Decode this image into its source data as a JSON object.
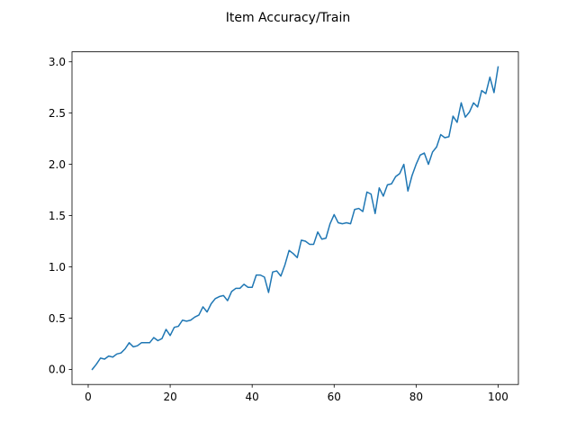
{
  "chart_data": {
    "type": "line",
    "title": "Item Accuracy/Train",
    "xlabel": "",
    "ylabel": "",
    "xlim": [
      -3.95,
      104.95
    ],
    "ylim": [
      -0.1475,
      3.0975
    ],
    "xticks": [
      0,
      20,
      40,
      60,
      80,
      100
    ],
    "xtick_labels": [
      "0",
      "20",
      "40",
      "60",
      "80",
      "100"
    ],
    "yticks": [
      0.0,
      0.5,
      1.0,
      1.5,
      2.0,
      2.5,
      3.0
    ],
    "ytick_labels": [
      "0.0",
      "0.5",
      "1.0",
      "1.5",
      "2.0",
      "2.5",
      "3.0"
    ],
    "grid": false,
    "legend": "none",
    "series": [
      {
        "color": "#1f77b4",
        "x": [
          1,
          2,
          3,
          4,
          5,
          6,
          7,
          8,
          9,
          10,
          11,
          12,
          13,
          14,
          15,
          16,
          17,
          18,
          19,
          20,
          21,
          22,
          23,
          24,
          25,
          26,
          27,
          28,
          29,
          30,
          31,
          32,
          33,
          34,
          35,
          36,
          37,
          38,
          39,
          40,
          41,
          42,
          43,
          44,
          45,
          46,
          47,
          48,
          49,
          50,
          51,
          52,
          53,
          54,
          55,
          56,
          57,
          58,
          59,
          60,
          61,
          62,
          63,
          64,
          65,
          66,
          67,
          68,
          69,
          70,
          71,
          72,
          73,
          74,
          75,
          76,
          77,
          78,
          79,
          80,
          81,
          82,
          83,
          84,
          85,
          86,
          87,
          88,
          89,
          90,
          91,
          92,
          93,
          94,
          95,
          96,
          97,
          98,
          99,
          100
        ],
        "y": [
          0.0,
          0.05,
          0.11,
          0.1,
          0.13,
          0.12,
          0.15,
          0.16,
          0.2,
          0.26,
          0.22,
          0.23,
          0.26,
          0.26,
          0.26,
          0.31,
          0.28,
          0.3,
          0.39,
          0.33,
          0.41,
          0.42,
          0.48,
          0.47,
          0.48,
          0.51,
          0.53,
          0.61,
          0.56,
          0.64,
          0.69,
          0.71,
          0.72,
          0.67,
          0.76,
          0.79,
          0.79,
          0.83,
          0.8,
          0.8,
          0.92,
          0.92,
          0.9,
          0.75,
          0.95,
          0.96,
          0.91,
          1.02,
          1.16,
          1.13,
          1.09,
          1.26,
          1.25,
          1.22,
          1.22,
          1.34,
          1.27,
          1.28,
          1.42,
          1.51,
          1.43,
          1.42,
          1.43,
          1.42,
          1.56,
          1.57,
          1.54,
          1.73,
          1.71,
          1.52,
          1.77,
          1.69,
          1.8,
          1.81,
          1.88,
          1.91,
          2.0,
          1.74,
          1.89,
          2.0,
          2.09,
          2.11,
          2.0,
          2.12,
          2.17,
          2.29,
          2.26,
          2.27,
          2.47,
          2.41,
          2.6,
          2.46,
          2.51,
          2.6,
          2.56,
          2.72,
          2.69,
          2.85,
          2.7,
          2.95
        ]
      }
    ]
  }
}
